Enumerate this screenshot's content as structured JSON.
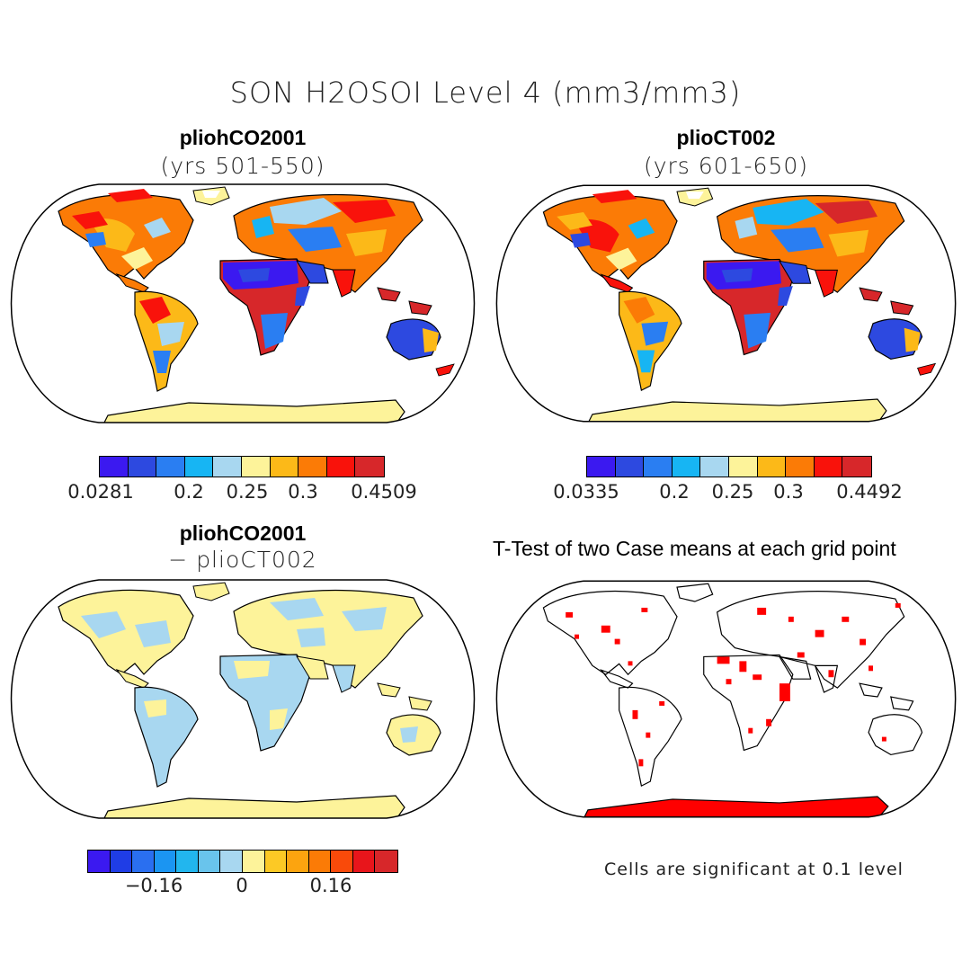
{
  "main_title": "SON H2OSOI Level 4 (mm3/mm3)",
  "panels": {
    "tl": {
      "title": "pliohCO2001",
      "subtitle": "(yrs 501-550)"
    },
    "tr": {
      "title": "plioCT002",
      "subtitle": "(yrs 601-650)"
    },
    "bl": {
      "title": "pliohCO2001",
      "subtitle": "− plioCT002"
    },
    "br": {
      "title": "T-Test of two Case means at each grid point"
    }
  },
  "colorbars": {
    "tl": {
      "colors": [
        "#3b19f0",
        "#2d49e0",
        "#2a7ef2",
        "#17b5f3",
        "#a8d7f0",
        "#fdf39a",
        "#fcb918",
        "#fb7b06",
        "#f9120b",
        "#d7272a"
      ],
      "labels": [
        "0.0281",
        "0.2",
        "0.25",
        "0.3",
        "0.4509"
      ]
    },
    "tr": {
      "colors": [
        "#3b19f0",
        "#2d49e0",
        "#2a7ef2",
        "#17b5f3",
        "#a8d7f0",
        "#fdf39a",
        "#fcb918",
        "#fb7b06",
        "#f9120b",
        "#d7272a"
      ],
      "labels": [
        "0.0335",
        "0.2",
        "0.25",
        "0.3",
        "0.4492"
      ]
    },
    "bl": {
      "colors": [
        "#3b19f0",
        "#1f3de6",
        "#2a6ff0",
        "#1b95f2",
        "#22b6ee",
        "#69c4ec",
        "#a8d7f0",
        "#fdf39a",
        "#fcc925",
        "#fca40f",
        "#fb7b06",
        "#f94a0a",
        "#e8151b",
        "#d7272a"
      ],
      "labels": [
        "−0.16",
        "0",
        "0.16"
      ]
    }
  },
  "note": "Cells are significant at 0.1 level",
  "colors": {
    "land_outline": "#000000",
    "significant": "#ff0000"
  }
}
